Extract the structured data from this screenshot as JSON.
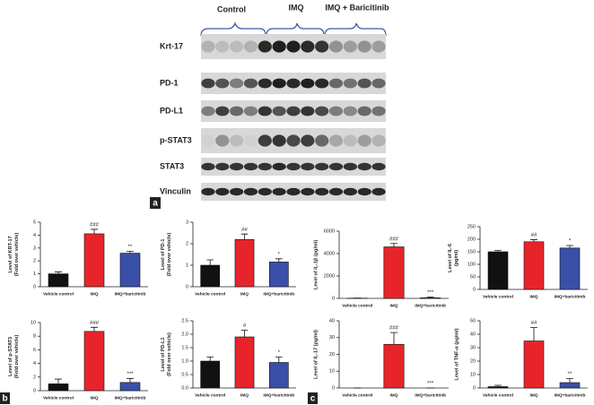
{
  "blot": {
    "groups": [
      "Control",
      "IMQ",
      "IMQ + Baricitinib"
    ],
    "rows": [
      "Krt-17",
      "PD-1",
      "PD-L1",
      "p-STAT3",
      "STAT3",
      "Vinculin"
    ]
  },
  "panel_labels": [
    "a",
    "b",
    "c"
  ],
  "chart_data": [
    {
      "type": "bar",
      "ylabel": [
        "Level of KRT-17",
        "(Fold over vehicle)"
      ],
      "categories": [
        "Vehicle control",
        "IMQ",
        "IMQ+baricitinib"
      ],
      "values": [
        1.0,
        4.1,
        2.6
      ],
      "errors": [
        0.15,
        0.35,
        0.15
      ],
      "annotations": [
        null,
        "###",
        "**"
      ],
      "colors": [
        "#111111",
        "#e8242b",
        "#3a4fa8"
      ],
      "ylim": [
        0,
        5
      ],
      "yticks": [
        0,
        1,
        2,
        3,
        4,
        5
      ]
    },
    {
      "type": "bar",
      "ylabel": [
        "Level of PD-1",
        "(Fold over vehicle)"
      ],
      "categories": [
        "Vehicle control",
        "IMQ",
        "IMQ+baricitinib"
      ],
      "values": [
        1.0,
        2.2,
        1.15
      ],
      "errors": [
        0.25,
        0.25,
        0.15
      ],
      "annotations": [
        null,
        "##",
        "*"
      ],
      "colors": [
        "#111111",
        "#e8242b",
        "#3a4fa8"
      ],
      "ylim": [
        0,
        3
      ],
      "yticks": [
        0,
        1,
        2,
        3
      ]
    },
    {
      "type": "bar",
      "ylabel": [
        "Level of IL-1β (pg/ml)"
      ],
      "categories": [
        "Vehicle control",
        "IMQ",
        "IMQ+baricitinib"
      ],
      "values": [
        20,
        4600,
        50
      ],
      "errors": [
        10,
        300,
        80
      ],
      "annotations": [
        null,
        "###",
        "***"
      ],
      "colors": [
        "#111111",
        "#e8242b",
        "#3a4fa8"
      ],
      "ylim": [
        0,
        6000
      ],
      "yticks": [
        0,
        2000,
        4000,
        6000
      ]
    },
    {
      "type": "bar",
      "ylabel": [
        "Level of IL-6",
        "(pg/ml)"
      ],
      "categories": [
        "Vehicle control",
        "IMQ",
        "IMQ+baricitinib"
      ],
      "values": [
        150,
        190,
        165
      ],
      "errors": [
        5,
        8,
        10
      ],
      "annotations": [
        null,
        "##",
        "*"
      ],
      "colors": [
        "#111111",
        "#e8242b",
        "#3a4fa8"
      ],
      "ylim": [
        0,
        250
      ],
      "yticks": [
        0,
        50,
        100,
        150,
        200,
        250
      ]
    },
    {
      "type": "bar",
      "ylabel": [
        "Level of p-STAT3",
        "(Fold over vehicle)"
      ],
      "categories": [
        "Vehicle control",
        "IMQ",
        "IMQ+baricitinib"
      ],
      "values": [
        1.0,
        8.7,
        1.2
      ],
      "errors": [
        0.7,
        0.6,
        0.6
      ],
      "annotations": [
        null,
        "###",
        "***"
      ],
      "colors": [
        "#111111",
        "#e8242b",
        "#3a4fa8"
      ],
      "ylim": [
        0,
        10
      ],
      "yticks": [
        0,
        2,
        4,
        6,
        8,
        10
      ]
    },
    {
      "type": "bar",
      "ylabel": [
        "Level of PD-L1",
        "(Fold over vehicle)"
      ],
      "categories": [
        "Vehicle control",
        "IMQ",
        "IMQ+baricitinib"
      ],
      "values": [
        1.0,
        1.9,
        0.95
      ],
      "errors": [
        0.15,
        0.25,
        0.2
      ],
      "annotations": [
        null,
        "#",
        "*"
      ],
      "colors": [
        "#111111",
        "#e8242b",
        "#3a4fa8"
      ],
      "ylim": [
        0,
        2.5
      ],
      "yticks": [
        {
          "value": 0,
          "label": "0.0"
        },
        {
          "value": 0.5,
          "label": "0.5"
        },
        {
          "value": 1,
          "label": "1.0"
        },
        {
          "value": 1.5,
          "label": "1.5"
        },
        {
          "value": 2,
          "label": "2.0"
        },
        {
          "value": 2.5,
          "label": "2.5"
        }
      ]
    },
    {
      "type": "bar",
      "ylabel": [
        "Level of IL-17 (pg/ml)"
      ],
      "categories": [
        "Vehicle control",
        "IMQ",
        "IMQ+baricitinib"
      ],
      "values": [
        0,
        26,
        0
      ],
      "errors": [
        0,
        7,
        0
      ],
      "annotations": [
        null,
        "###",
        "***"
      ],
      "colors": [
        "#111111",
        "#e8242b",
        "#3a4fa8"
      ],
      "ylim": [
        0,
        40
      ],
      "yticks": [
        0,
        10,
        20,
        30,
        40
      ]
    },
    {
      "type": "bar",
      "ylabel": [
        "Level of TNF-α (pg/ml)"
      ],
      "categories": [
        "Vehicle control",
        "IMQ",
        "IMQ+baricitinib"
      ],
      "values": [
        1,
        35,
        4
      ],
      "errors": [
        1,
        10,
        3
      ],
      "annotations": [
        null,
        "##",
        "**"
      ],
      "colors": [
        "#111111",
        "#e8242b",
        "#3a4fa8"
      ],
      "ylim": [
        0,
        50
      ],
      "yticks": [
        0,
        10,
        20,
        30,
        40,
        50
      ]
    }
  ]
}
